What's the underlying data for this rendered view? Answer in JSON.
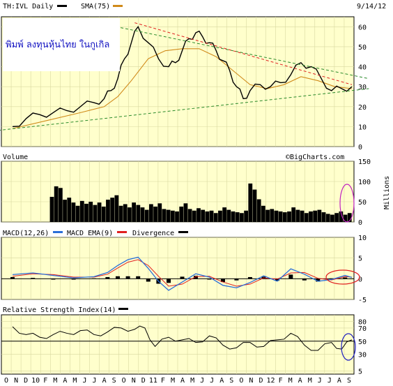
{
  "header": {
    "ticker_label": "TH:IVL Daily",
    "sma_label": "SMA(75)",
    "date": "9/14/12"
  },
  "annotation": {
    "text": "พิมพ์  ลงทุนหุ้นไทย  ในกูเกิล"
  },
  "colors": {
    "panel_bg": "#ffffcc",
    "grid": "#d8d8a0",
    "price": "#000000",
    "sma": "#d08a1a",
    "support_trendline": "#2a8a2a",
    "resistance_trendline": "#e02020",
    "macd": "#2a6ed8",
    "macd_ema": "#e02020",
    "divergence": "#000000",
    "annotation_volume": "#c020c0",
    "annotation_macd": "#e02020",
    "annotation_rsi": "#2020c0",
    "annotation_text": "#1010c0"
  },
  "chart_data": [
    {
      "type": "line",
      "panel": "price",
      "title": "TH:IVL Daily",
      "ylim": [
        0,
        65
      ],
      "yticks": [
        0,
        10,
        20,
        30,
        40,
        50,
        60
      ],
      "series": [
        {
          "name": "TH:IVL Daily",
          "x": [
            0,
            4,
            8,
            12,
            16,
            20,
            24,
            27,
            29,
            31,
            33,
            35,
            37,
            40,
            43,
            46,
            48,
            50,
            52,
            54,
            56,
            58,
            60,
            62,
            64,
            66,
            68,
            70,
            73,
            76,
            79,
            82,
            85,
            88,
            91,
            94,
            97,
            100
          ],
          "values": [
            10,
            14,
            16,
            17,
            18,
            20,
            22,
            24,
            28,
            34,
            44,
            52,
            60,
            52,
            44,
            40,
            42,
            48,
            54,
            57,
            55,
            52,
            48,
            43,
            38,
            30,
            24,
            28,
            31,
            30,
            32,
            36,
            42,
            40,
            34,
            28,
            29,
            30
          ]
        },
        {
          "name": "SMA(75)",
          "x": [
            0,
            10,
            20,
            27,
            31,
            35,
            40,
            45,
            50,
            55,
            60,
            65,
            70,
            75,
            80,
            85,
            90,
            95,
            100
          ],
          "values": [
            9,
            13,
            17,
            20,
            25,
            33,
            44,
            48,
            49,
            49,
            45,
            38,
            31,
            29,
            31,
            35,
            33,
            30,
            29
          ]
        }
      ],
      "trendlines": [
        {
          "name": "support",
          "from": [
            -10,
            7
          ],
          "to": [
            105,
            29
          ]
        },
        {
          "name": "upper-resistance",
          "from": [
            22,
            63
          ],
          "to": [
            105,
            34
          ]
        },
        {
          "name": "lower-resistance",
          "from": [
            36,
            62
          ],
          "to": [
            100,
            31
          ]
        }
      ],
      "grid": true
    },
    {
      "type": "bar",
      "panel": "volume",
      "title": "Volume",
      "ylabel": "Millions",
      "ylim": [
        0,
        150
      ],
      "yticks": [
        0,
        50,
        100,
        150
      ],
      "watermark": "©BigCharts.com",
      "values": [
        62,
        88,
        84,
        55,
        60,
        48,
        40,
        52,
        45,
        50,
        42,
        48,
        38,
        55,
        60,
        66,
        40,
        44,
        36,
        48,
        42,
        36,
        30,
        44,
        38,
        46,
        32,
        30,
        28,
        26,
        38,
        46,
        32,
        28,
        34,
        30,
        26,
        28,
        22,
        28,
        36,
        30,
        26,
        24,
        22,
        28,
        95,
        80,
        56,
        40,
        30,
        32,
        28,
        26,
        24,
        26,
        36,
        30,
        28,
        22,
        26,
        28,
        30,
        24,
        20,
        18,
        22,
        26,
        18,
        22
      ],
      "grid": true
    },
    {
      "type": "line",
      "panel": "macd",
      "title": "MACD(12,26)",
      "ylim": [
        -5,
        10
      ],
      "yticks": [
        -5,
        0,
        5,
        10
      ],
      "series": [
        {
          "name": "MACD(12,26)",
          "x": [
            0,
            6,
            12,
            18,
            24,
            28,
            31,
            34,
            37,
            40,
            43,
            46,
            50,
            54,
            58,
            62,
            66,
            70,
            74,
            78,
            82,
            86,
            90,
            94,
            98,
            100
          ],
          "values": [
            1,
            1.4,
            0.8,
            0.2,
            0.5,
            1.5,
            3.2,
            4.6,
            5.2,
            2.5,
            -0.6,
            -2.8,
            -0.8,
            1.2,
            0.4,
            -1.6,
            -2.2,
            -0.9,
            0.7,
            -0.6,
            2.4,
            1.1,
            -0.6,
            -0.2,
            0.8,
            0.3
          ]
        },
        {
          "name": "MACD EMA(9)",
          "x": [
            0,
            6,
            12,
            18,
            24,
            28,
            31,
            34,
            37,
            40,
            43,
            46,
            50,
            54,
            58,
            62,
            66,
            70,
            74,
            78,
            82,
            86,
            90,
            94,
            98,
            100
          ],
          "values": [
            0.6,
            1.2,
            1,
            0.4,
            0.4,
            1.1,
            2.6,
            4,
            4.6,
            3.2,
            0.6,
            -1.8,
            -1.3,
            0.5,
            0.6,
            -0.8,
            -1.8,
            -1.3,
            0.2,
            -0.1,
            1.4,
            1.5,
            0.1,
            -0.3,
            0.5,
            0.4
          ]
        },
        {
          "name": "Divergence",
          "x": [
            0,
            6,
            12,
            18,
            24,
            28,
            31,
            34,
            37,
            40,
            43,
            46,
            50,
            54,
            58,
            62,
            66,
            70,
            74,
            78,
            82,
            86,
            90,
            94,
            98,
            100
          ],
          "values": [
            0.4,
            0.2,
            -0.2,
            -0.2,
            0.1,
            0.4,
            0.6,
            0.6,
            0.6,
            -0.7,
            -1.2,
            -1,
            0.5,
            0.7,
            -0.2,
            -0.8,
            -0.4,
            0.4,
            0.5,
            -0.5,
            1,
            -0.4,
            -0.7,
            0.1,
            0.3,
            -0.1
          ]
        }
      ],
      "grid": true
    },
    {
      "type": "line",
      "panel": "rsi",
      "title": "Relative Strength Index(14)",
      "ylim": [
        0,
        90
      ],
      "yticks": [
        5,
        30,
        50,
        70,
        80
      ],
      "series": [
        {
          "name": "Relative Strength Index(14)",
          "x": [
            0,
            4,
            8,
            12,
            16,
            20,
            24,
            28,
            32,
            36,
            39,
            42,
            46,
            50,
            54,
            58,
            62,
            66,
            70,
            74,
            78,
            82,
            86,
            90,
            94,
            97,
            100
          ],
          "values": [
            72,
            60,
            56,
            60,
            62,
            66,
            60,
            64,
            70,
            68,
            70,
            42,
            56,
            52,
            48,
            58,
            44,
            40,
            48,
            42,
            52,
            62,
            44,
            36,
            48,
            38,
            52
          ]
        }
      ],
      "grid": true
    }
  ],
  "time_axis": {
    "labels": [
      "O",
      "N",
      "D",
      "10",
      "F",
      "M",
      "A",
      "M",
      "J",
      "J",
      "A",
      "S",
      "O",
      "N",
      "D",
      "11",
      "F",
      "M",
      "A",
      "M",
      "J",
      "J",
      "A",
      "S",
      "O",
      "N",
      "D",
      "12",
      "F",
      "M",
      "A",
      "M",
      "J",
      "J",
      "A",
      "S"
    ]
  }
}
